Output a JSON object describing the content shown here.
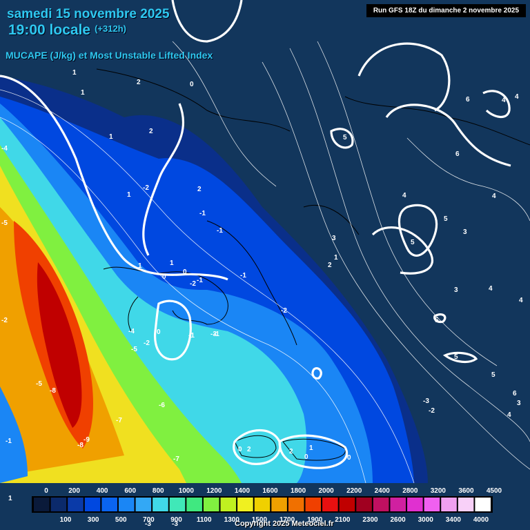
{
  "header": {
    "date": "samedi 15 novembre 2025",
    "time": "19:00 locale",
    "lead": "(+312h)",
    "parameter": "MUCAPE (J/kg) et Most Unstable Lifted Index",
    "run": "Run GFS 18Z du dimanche 2 novembre 2025"
  },
  "legend": {
    "top_ticks": [
      "0",
      "200",
      "400",
      "600",
      "800",
      "1000",
      "1200",
      "1400",
      "1600",
      "1800",
      "2000",
      "2200",
      "2400",
      "2800",
      "3200",
      "3600",
      "4500"
    ],
    "bottom_ticks": [
      "100",
      "300",
      "500",
      "700",
      "900",
      "1100",
      "1300",
      "1500",
      "1700",
      "1900",
      "2100",
      "2300",
      "2600",
      "3000",
      "3400",
      "4000"
    ],
    "colors": [
      "#0a1a3a",
      "#0b2a6b",
      "#0a3aa8",
      "#0048e0",
      "#0a64f0",
      "#1a86f5",
      "#33a8f5",
      "#40d8e8",
      "#40e8b8",
      "#40e880",
      "#80f040",
      "#c0f020",
      "#f0f020",
      "#f0d000",
      "#f0a000",
      "#f07000",
      "#f04000",
      "#e81010",
      "#c00000",
      "#a00020",
      "#c01060",
      "#d020a0",
      "#e030d0",
      "#f060f0",
      "#f0a0f0",
      "#f8d0f8",
      "#ffffff"
    ]
  },
  "li_labels": [
    "1",
    "2",
    "0",
    "1",
    "1",
    "2",
    "2",
    "1",
    "-2",
    "-1",
    "-1",
    "1",
    "1",
    "0",
    "0",
    "-1",
    "-2",
    "-1",
    "-2",
    "-1",
    "0",
    "-1",
    "-2",
    "-5",
    "-3",
    "-4",
    "-5",
    "-4",
    "-2",
    "-5",
    "-8",
    "-6",
    "-7",
    "-9",
    "-8",
    "-7",
    "-1",
    "-3",
    "-3",
    "1",
    "0",
    "0",
    "2",
    "2",
    "1",
    "0",
    "5",
    "6",
    "4",
    "4",
    "6",
    "4",
    "4",
    "3",
    "5",
    "5",
    "3",
    "3",
    "2",
    "1",
    "4",
    "4",
    "5",
    "5",
    "-3",
    "-2",
    "6",
    "5",
    "4",
    "3"
  ],
  "copyright": "Copyright 2025 Meteociel.fr"
}
